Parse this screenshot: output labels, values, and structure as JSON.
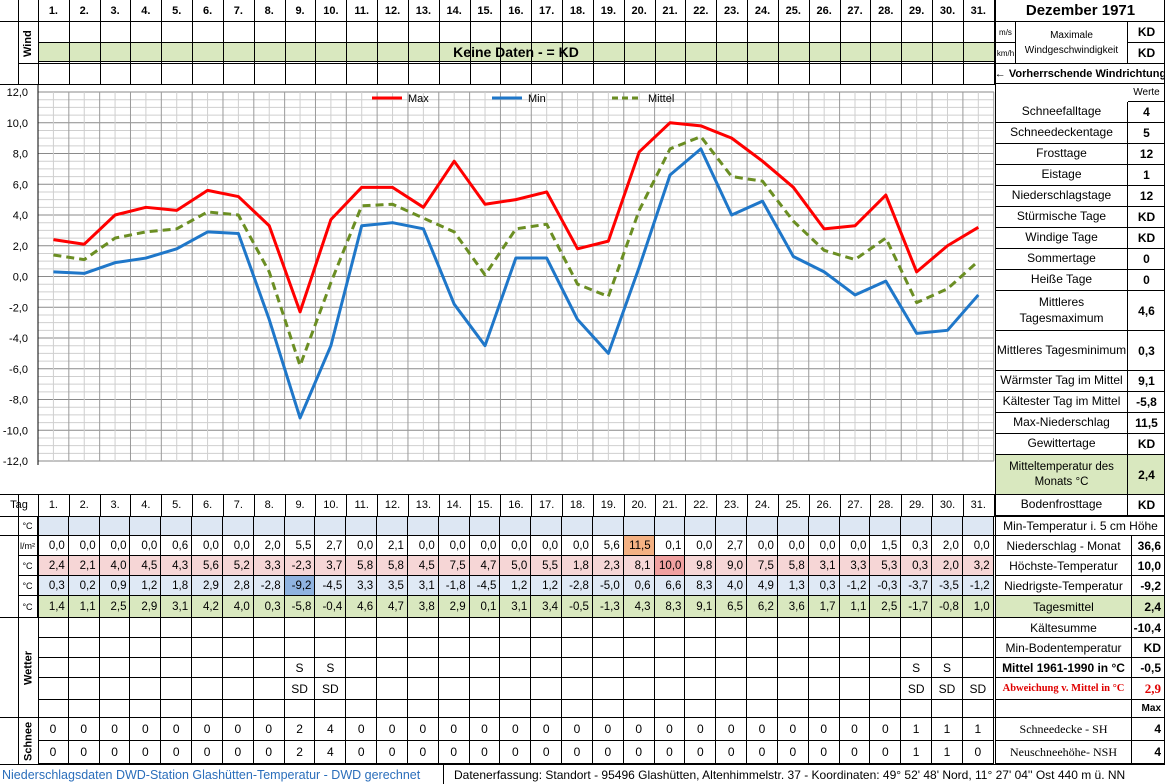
{
  "header": {
    "title": "Dezember 1971",
    "days": [
      "1.",
      "2.",
      "3.",
      "4.",
      "5.",
      "6.",
      "7.",
      "8.",
      "9.",
      "10.",
      "11.",
      "12.",
      "13.",
      "14.",
      "15.",
      "16.",
      "17.",
      "18.",
      "19.",
      "20.",
      "21.",
      "22.",
      "23.",
      "24.",
      "25.",
      "26.",
      "27.",
      "28.",
      "29.",
      "30.",
      "31."
    ],
    "wind_label": "Wind",
    "unit_ms": "m/s",
    "unit_kmh": "km/h",
    "max_wind_label": "Maximale Windgeschwindigkeit",
    "max_wind_ms": "KD",
    "max_wind_kmh": "KD",
    "no_data": "Keine Daten -  = KD",
    "wind_direction": "← Vorherrschende Windrichtung",
    "werte": "Werte"
  },
  "stats": [
    {
      "label": "Schneefalltage",
      "value": "4"
    },
    {
      "label": "Schneedeckentage",
      "value": "5"
    },
    {
      "label": "Frosttage",
      "value": "12"
    },
    {
      "label": "Eistage",
      "value": "1"
    },
    {
      "label": "Niederschlagstage",
      "value": "12"
    },
    {
      "label": "Stürmische Tage",
      "value": "KD"
    },
    {
      "label": "Windige Tage",
      "value": "KD"
    },
    {
      "label": "Sommertage",
      "value": "0"
    },
    {
      "label": "Heiße Tage",
      "value": "0"
    },
    {
      "label": "Mittleres Tagesmaximum",
      "value": "4,6"
    },
    {
      "label": "Mittleres Tagesminimum",
      "value": "0,3"
    },
    {
      "label": "Wärmster Tag im Mittel",
      "value": "9,1"
    },
    {
      "label": "Kältester Tag im Mittel",
      "value": "-5,8"
    },
    {
      "label": "Max-Niederschlag",
      "value": "11,5"
    },
    {
      "label": "Gewittertage",
      "value": "KD"
    },
    {
      "label": "Mitteltemperatur des Monats °C",
      "value": "2,4"
    },
    {
      "label": "Bodenfrosttage",
      "value": "KD"
    }
  ],
  "table": {
    "tag_label": "Tag",
    "unit_c": "°C",
    "unit_lm2": "l/m²",
    "min5cm_label": "Min-Temperatur i. 5 cm Höhe",
    "precip": [
      "0,0",
      "0,0",
      "0,0",
      "0,0",
      "0,6",
      "0,0",
      "0,0",
      "2,0",
      "5,5",
      "2,7",
      "0,0",
      "2,1",
      "0,0",
      "0,0",
      "0,0",
      "0,0",
      "0,0",
      "0,0",
      "5,6",
      "11,5",
      "0,1",
      "0,0",
      "2,7",
      "0,0",
      "0,0",
      "0,0",
      "0,0",
      "1,5",
      "0,3",
      "2,0",
      "0,0"
    ],
    "tmax": [
      "2,4",
      "2,1",
      "4,0",
      "4,5",
      "4,3",
      "5,6",
      "5,2",
      "3,3",
      "-2,3",
      "3,7",
      "5,8",
      "5,8",
      "4,5",
      "7,5",
      "4,7",
      "5,0",
      "5,5",
      "1,8",
      "2,3",
      "8,1",
      "10,0",
      "9,8",
      "9,0",
      "7,5",
      "5,8",
      "3,1",
      "3,3",
      "5,3",
      "0,3",
      "2,0",
      "3,2"
    ],
    "tmin": [
      "0,3",
      "0,2",
      "0,9",
      "1,2",
      "1,8",
      "2,9",
      "2,8",
      "-2,8",
      "-9,2",
      "-4,5",
      "3,3",
      "3,5",
      "3,1",
      "-1,8",
      "-4,5",
      "1,2",
      "1,2",
      "-2,8",
      "-5,0",
      "0,6",
      "6,6",
      "8,3",
      "4,0",
      "4,9",
      "1,3",
      "0,3",
      "-1,2",
      "-0,3",
      "-3,7",
      "-3,5",
      "-1,2"
    ],
    "tmean": [
      "1,4",
      "1,1",
      "2,5",
      "2,9",
      "3,1",
      "4,2",
      "4,0",
      "0,3",
      "-5,8",
      "-0,4",
      "4,6",
      "4,7",
      "3,8",
      "2,9",
      "0,1",
      "3,1",
      "3,4",
      "-0,5",
      "-1,3",
      "4,3",
      "8,3",
      "9,1",
      "6,5",
      "6,2",
      "3,6",
      "1,7",
      "1,1",
      "2,5",
      "-1,7",
      "-0,8",
      "1,0"
    ],
    "wetter_label": "Wetter",
    "wetter_row1": [
      "",
      "",
      "",
      "",
      "",
      "",
      "",
      "",
      "S",
      "S",
      "",
      "",
      "",
      "",
      "",
      "",
      "",
      "",
      "",
      "",
      "",
      "",
      "",
      "",
      "",
      "",
      "",
      "",
      "S",
      "S",
      ""
    ],
    "wetter_row2": [
      "",
      "",
      "",
      "",
      "",
      "",
      "",
      "",
      "SD",
      "SD",
      "",
      "",
      "",
      "",
      "",
      "",
      "",
      "",
      "",
      "",
      "",
      "",
      "",
      "",
      "",
      "",
      "",
      "",
      "SD",
      "SD",
      "SD"
    ],
    "schnee_label": "Schnee",
    "sh": [
      "0",
      "0",
      "0",
      "0",
      "0",
      "0",
      "0",
      "0",
      "2",
      "4",
      "0",
      "0",
      "0",
      "0",
      "0",
      "0",
      "0",
      "0",
      "0",
      "0",
      "0",
      "0",
      "0",
      "0",
      "0",
      "0",
      "0",
      "0",
      "1",
      "1",
      "1"
    ],
    "nsh": [
      "0",
      "0",
      "0",
      "0",
      "0",
      "0",
      "0",
      "0",
      "2",
      "4",
      "0",
      "0",
      "0",
      "0",
      "0",
      "0",
      "0",
      "0",
      "0",
      "0",
      "0",
      "0",
      "0",
      "0",
      "0",
      "0",
      "0",
      "0",
      "1",
      "1",
      "0"
    ]
  },
  "bottom_stats": [
    {
      "label": "Niederschlag - Monat",
      "value": "36,6"
    },
    {
      "label": "Höchste-Temperatur",
      "value": "10,0"
    },
    {
      "label": "Niedrigste-Temperatur",
      "value": "-9,2"
    },
    {
      "label": "Tagesmittel",
      "value": "2,4"
    },
    {
      "label": "Kältesumme",
      "value": "-10,4"
    },
    {
      "label": "Min-Bodentemperatur",
      "value": "KD"
    },
    {
      "label": "Mittel 1961-1990 in °C",
      "value": "-0,5"
    },
    {
      "label": "Abweichung v. Mittel in °C",
      "value": "2,9"
    },
    {
      "label": "",
      "value": "Max"
    },
    {
      "label": "Schneedecke -  SH",
      "value": "4"
    },
    {
      "label": "Neuschneehöhe- NSH",
      "value": "4"
    }
  ],
  "footer": {
    "left": "Niederschlagsdaten DWD-Station Glashütten-Temperatur -  DWD gerechnet",
    "right": "Datenerfassung: Standort -  95496 Glashütten, Altenhimmelstr. 37 - Koordinaten: 49° 52' 48' Nord,  11° 27' 04'' Ost  440 m ü. NN"
  },
  "colors": {
    "max": "#ff0000",
    "min": "#1f77c9",
    "mean": "#6b8e23",
    "green_fill": "#d9e8bf",
    "pink_fill": "#f6d6d6",
    "blue_fill": "#c9dcf0",
    "orange_fill": "#f4b183"
  },
  "chart_data": {
    "type": "line",
    "x": [
      1,
      2,
      3,
      4,
      5,
      6,
      7,
      8,
      9,
      10,
      11,
      12,
      13,
      14,
      15,
      16,
      17,
      18,
      19,
      20,
      21,
      22,
      23,
      24,
      25,
      26,
      27,
      28,
      29,
      30,
      31
    ],
    "ylim": [
      -12,
      12
    ],
    "yticks": [
      "12,0",
      "10,0",
      "8,0",
      "6,0",
      "4,0",
      "2,0",
      "0,0",
      "-2,0",
      "-4,0",
      "-6,0",
      "-8,0",
      "-10,0",
      "-12,0"
    ],
    "grid": true,
    "legend_placement": "top",
    "series": [
      {
        "name": "Max",
        "values": [
          2.4,
          2.1,
          4.0,
          4.5,
          4.3,
          5.6,
          5.2,
          3.3,
          -2.3,
          3.7,
          5.8,
          5.8,
          4.5,
          7.5,
          4.7,
          5.0,
          5.5,
          1.8,
          2.3,
          8.1,
          10.0,
          9.8,
          9.0,
          7.5,
          5.8,
          3.1,
          3.3,
          5.3,
          0.3,
          2.0,
          3.2
        ]
      },
      {
        "name": "Min",
        "values": [
          0.3,
          0.2,
          0.9,
          1.2,
          1.8,
          2.9,
          2.8,
          -2.8,
          -9.2,
          -4.5,
          3.3,
          3.5,
          3.1,
          -1.8,
          -4.5,
          1.2,
          1.2,
          -2.8,
          -5.0,
          0.6,
          6.6,
          8.3,
          4.0,
          4.9,
          1.3,
          0.3,
          -1.2,
          -0.3,
          -3.7,
          -3.5,
          -1.2
        ]
      },
      {
        "name": "Mittel",
        "values": [
          1.4,
          1.1,
          2.5,
          2.9,
          3.1,
          4.2,
          4.0,
          0.3,
          -5.8,
          -0.4,
          4.6,
          4.7,
          3.8,
          2.9,
          0.1,
          3.1,
          3.4,
          -0.5,
          -1.3,
          4.3,
          8.3,
          9.1,
          6.5,
          6.2,
          3.6,
          1.7,
          1.1,
          2.5,
          -1.7,
          -0.8,
          1.0
        ]
      }
    ]
  }
}
